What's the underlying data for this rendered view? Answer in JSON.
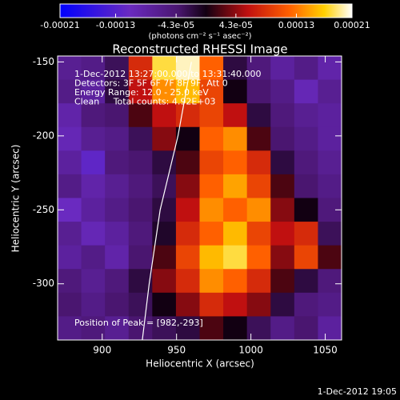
{
  "chart_data": {
    "type": "heatmap",
    "title": "Reconstructed RHESSI Image",
    "x_label": "Heliocentric X (arcsec)",
    "y_label": "Heliocentric Y (arcsec)",
    "xlim": [
      870,
      1061
    ],
    "ylim": [
      -338,
      -146
    ],
    "xticks": [
      900,
      950,
      1000,
      1050
    ],
    "yticks": [
      -150,
      -200,
      -250,
      -300
    ],
    "z": [
      [
        -7e-05,
        -6e-05,
        -3e-05,
        8e-05,
        0.00018,
        0.0002,
        0.00012,
        -2e-05,
        -5e-05,
        -8e-05,
        -6e-05,
        -9e-05
      ],
      [
        -6e-05,
        -8e-05,
        -2e-05,
        6e-05,
        0.00014,
        0.00016,
        0.0001,
        0,
        -4e-05,
        -6e-05,
        -0.0001,
        -7e-05
      ],
      [
        -9e-05,
        -5e-05,
        -4e-05,
        2e-05,
        6e-05,
        8e-05,
        0.0001,
        6e-05,
        -2e-05,
        -5e-05,
        -7e-05,
        -8e-05
      ],
      [
        -0.0001,
        -7e-05,
        -6e-05,
        -3e-05,
        4e-05,
        0,
        0.00012,
        0.00014,
        2e-05,
        -4e-05,
        -6e-05,
        -8e-05
      ],
      [
        -8e-05,
        -0.00012,
        -5e-05,
        -4e-05,
        -2e-05,
        2e-05,
        0.0001,
        0.00012,
        8e-05,
        -2e-05,
        -5e-05,
        -7e-05
      ],
      [
        -6e-05,
        -9e-05,
        -7e-05,
        -5e-05,
        -3e-05,
        4e-05,
        0.00012,
        0.00015,
        0.0001,
        2e-05,
        -4e-05,
        -6e-05
      ],
      [
        -0.00011,
        -8e-05,
        -6e-05,
        -4e-05,
        -2e-05,
        6e-05,
        0.00014,
        0.00012,
        0.00014,
        4e-05,
        0,
        -5e-05
      ],
      [
        -7e-05,
        -0.0001,
        -8e-05,
        -5e-05,
        -1e-05,
        8e-05,
        0.00012,
        0.00016,
        0.0001,
        6e-05,
        8e-05,
        -3e-05
      ],
      [
        -8e-05,
        -6e-05,
        -9e-05,
        -4e-05,
        2e-05,
        0.0001,
        0.00016,
        0.00018,
        0.00012,
        4e-05,
        0.0001,
        2e-05
      ],
      [
        -5e-05,
        -7e-05,
        -5e-05,
        -2e-05,
        4e-05,
        8e-05,
        0.00014,
        0.00012,
        8e-05,
        2e-05,
        -2e-05,
        -5e-05
      ],
      [
        -4e-05,
        -6e-05,
        -4e-05,
        -3e-05,
        0,
        4e-05,
        8e-05,
        6e-05,
        4e-05,
        -2e-05,
        -5e-05,
        -6e-05
      ],
      [
        -6e-05,
        -5e-05,
        -7e-05,
        -4e-05,
        -3e-05,
        -2e-05,
        2e-05,
        0,
        -3e-05,
        -6e-05,
        -4e-05,
        -8e-05
      ]
    ],
    "colorscale": [
      [
        -0.00021,
        "#0000ff"
      ],
      [
        -0.00011,
        "#6a2ac0"
      ],
      [
        -4e-05,
        "#4a1670"
      ],
      [
        0,
        "#120012"
      ],
      [
        6e-05,
        "#c01010"
      ],
      [
        0.00012,
        "#ff6000"
      ],
      [
        0.00017,
        "#ffd000"
      ],
      [
        0.00021,
        "#ffffff"
      ]
    ],
    "colorbar": {
      "lim": [
        -0.00021,
        0.00021
      ],
      "ticks": [
        -0.00021,
        -0.00013,
        {
          "value": -4.3e-05,
          "label": "-4.3e-05"
        },
        {
          "value": 4.3e-05,
          "label": "4.3e-05"
        },
        0.00013,
        0.00021
      ],
      "label": "(photons cm⁻² s⁻¹ asec⁻²)"
    },
    "limb": {
      "x": [
        927,
        931.6,
        939,
        951,
        960
      ],
      "y": [
        -338,
        -300,
        -250,
        -200,
        -150
      ],
      "color": "#ffffff"
    },
    "annotations": [
      "1-Dec-2012 13:27:00.000 to 13:31:40.000",
      "Detectors: 3F 5F 6F 7F 8F 9F, Att 0",
      "Energy Range: 12.0 - 25.0 keV",
      "Clean     Total counts: 4.92E+03"
    ],
    "peak_note": "Position of Peak = [982,-293]",
    "footer": "1-Dec-2012 19:05"
  }
}
